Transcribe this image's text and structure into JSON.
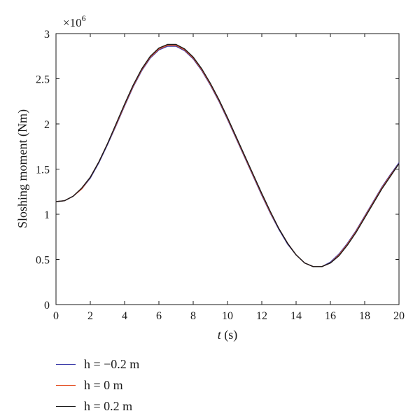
{
  "chart_data": {
    "type": "line",
    "title": "",
    "xlabel_var": "t",
    "xlabel_unit": " (s)",
    "ylabel": "Sloshing moment (Nm)",
    "y_multiplier": "×10",
    "y_multiplier_exp": "6",
    "xlim": [
      0,
      20
    ],
    "ylim": [
      0,
      3
    ],
    "x_ticks": [
      "0",
      "2",
      "4",
      "6",
      "8",
      "10",
      "12",
      "14",
      "16",
      "18",
      "20"
    ],
    "y_ticks": [
      "0",
      "0.5",
      "1",
      "1.5",
      "2",
      "2.5",
      "3"
    ],
    "grid": false,
    "legend_position": "below",
    "x": [
      0,
      0.5,
      1,
      1.5,
      2,
      2.5,
      3,
      3.5,
      4,
      4.5,
      5,
      5.5,
      6,
      6.5,
      7,
      7.5,
      8,
      8.5,
      9,
      9.5,
      10,
      10.5,
      11,
      11.5,
      12,
      12.5,
      13,
      13.5,
      14,
      14.5,
      15,
      15.5,
      16,
      16.5,
      17,
      17.5,
      18,
      18.5,
      19,
      19.5,
      20
    ],
    "series": [
      {
        "name": "h = −0.2 m",
        "color": "#3a3aa8",
        "values": [
          1.14,
          1.15,
          1.2,
          1.28,
          1.4,
          1.57,
          1.77,
          1.98,
          2.2,
          2.41,
          2.59,
          2.73,
          2.82,
          2.86,
          2.86,
          2.81,
          2.72,
          2.59,
          2.43,
          2.25,
          2.05,
          1.84,
          1.63,
          1.42,
          1.21,
          1.01,
          0.83,
          0.67,
          0.55,
          0.46,
          0.42,
          0.42,
          0.47,
          0.56,
          0.68,
          0.82,
          0.98,
          1.14,
          1.3,
          1.44,
          1.57
        ]
      },
      {
        "name": "h = 0 m",
        "color": "#e5542a",
        "values": [
          1.14,
          1.15,
          1.2,
          1.28,
          1.41,
          1.58,
          1.78,
          1.99,
          2.21,
          2.42,
          2.6,
          2.74,
          2.83,
          2.87,
          2.87,
          2.82,
          2.73,
          2.6,
          2.44,
          2.26,
          2.06,
          1.85,
          1.64,
          1.43,
          1.22,
          1.02,
          0.84,
          0.68,
          0.55,
          0.46,
          0.42,
          0.42,
          0.46,
          0.55,
          0.67,
          0.81,
          0.97,
          1.13,
          1.29,
          1.43,
          1.56
        ]
      },
      {
        "name": "h = 0.2 m",
        "color": "#1a1a1a",
        "values": [
          1.14,
          1.15,
          1.2,
          1.29,
          1.41,
          1.58,
          1.78,
          2.0,
          2.22,
          2.43,
          2.61,
          2.75,
          2.84,
          2.88,
          2.88,
          2.83,
          2.74,
          2.61,
          2.45,
          2.27,
          2.07,
          1.86,
          1.65,
          1.44,
          1.23,
          1.03,
          0.84,
          0.68,
          0.55,
          0.46,
          0.42,
          0.42,
          0.46,
          0.54,
          0.66,
          0.8,
          0.96,
          1.12,
          1.28,
          1.42,
          1.56
        ]
      }
    ]
  }
}
